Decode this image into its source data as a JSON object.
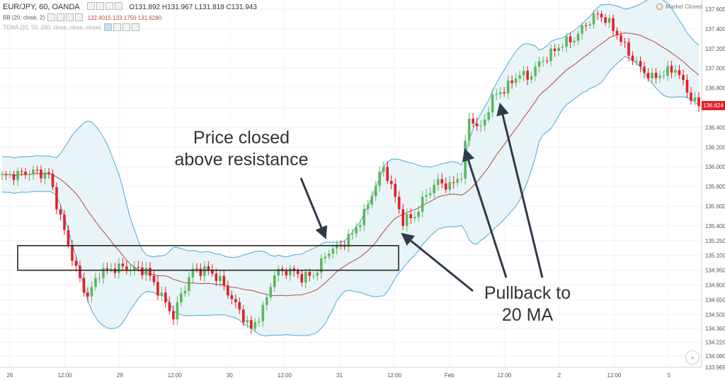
{
  "header": {
    "symbol": "EUR/JPY, 60, OANDA",
    "ohlc_label": "O131.892 H131.967 L131.818 C131.943",
    "bb_label": "BB (20, close, 2)",
    "bb_values": "132.4015  133.1750  131.6280",
    "tema_label": "TEMA (20, 50, 200, close, close, close)"
  },
  "market_status": "Market Closed",
  "current_price": "136.624",
  "annotations": {
    "resistance_line1": "Price closed",
    "resistance_line2": "above resistance",
    "pullback_line1": "Pullback to",
    "pullback_line2": "20 MA"
  },
  "colors": {
    "up": "#5cb85c",
    "down": "#e31f26",
    "band": "#4aa8d8",
    "band_fill": "#e8f4f8",
    "ma": "#b04a3c",
    "arrow": "#2f3b4a"
  },
  "chart_data": {
    "type": "candlestick",
    "symbol": "EUR/JPY",
    "timeframe": "60",
    "x_tick_labels": [
      "26",
      "12:00",
      "29",
      "12:00",
      "30",
      "12:00",
      "31",
      "12:00",
      "Feb",
      "12:00",
      "2",
      "12:00",
      "5"
    ],
    "y_tick_labels": [
      "137.600",
      "137.400",
      "137.200",
      "137.000",
      "136.800",
      "136.600",
      "136.400",
      "136.200",
      "136.000",
      "135.800",
      "135.600",
      "135.400",
      "135.250",
      "135.100",
      "134.950",
      "134.800",
      "134.650",
      "134.500",
      "134.360",
      "134.220",
      "134.080",
      "133.965"
    ],
    "ylim": [
      133.965,
      137.6
    ],
    "close_path": [
      {
        "x": 0,
        "y": 135.9
      },
      {
        "x": 8,
        "y": 135.95
      },
      {
        "x": 12,
        "y": 135.92
      },
      {
        "x": 15,
        "y": 135.48
      },
      {
        "x": 18,
        "y": 135.08
      },
      {
        "x": 20,
        "y": 134.85
      },
      {
        "x": 22,
        "y": 134.68
      },
      {
        "x": 25,
        "y": 134.93
      },
      {
        "x": 30,
        "y": 134.98
      },
      {
        "x": 34,
        "y": 134.96
      },
      {
        "x": 37,
        "y": 134.95
      },
      {
        "x": 40,
        "y": 134.75
      },
      {
        "x": 44,
        "y": 134.48
      },
      {
        "x": 46,
        "y": 134.7
      },
      {
        "x": 49,
        "y": 134.95
      },
      {
        "x": 53,
        "y": 134.95
      },
      {
        "x": 56,
        "y": 134.85
      },
      {
        "x": 60,
        "y": 134.6
      },
      {
        "x": 64,
        "y": 134.35
      },
      {
        "x": 67,
        "y": 134.55
      },
      {
        "x": 70,
        "y": 134.92
      },
      {
        "x": 74,
        "y": 134.95
      },
      {
        "x": 77,
        "y": 134.88
      },
      {
        "x": 80,
        "y": 134.9
      },
      {
        "x": 84,
        "y": 135.15
      },
      {
        "x": 87,
        "y": 135.2
      },
      {
        "x": 90,
        "y": 135.32
      },
      {
        "x": 93,
        "y": 135.52
      },
      {
        "x": 96,
        "y": 135.82
      },
      {
        "x": 98,
        "y": 136.0
      },
      {
        "x": 100,
        "y": 135.8
      },
      {
        "x": 103,
        "y": 135.45
      },
      {
        "x": 106,
        "y": 135.5
      },
      {
        "x": 109,
        "y": 135.72
      },
      {
        "x": 112,
        "y": 135.85
      },
      {
        "x": 115,
        "y": 135.8
      },
      {
        "x": 118,
        "y": 135.92
      },
      {
        "x": 120,
        "y": 136.5
      },
      {
        "x": 123,
        "y": 136.38
      },
      {
        "x": 126,
        "y": 136.7
      },
      {
        "x": 130,
        "y": 136.82
      },
      {
        "x": 133,
        "y": 136.95
      },
      {
        "x": 135,
        "y": 136.9
      },
      {
        "x": 138,
        "y": 137.05
      },
      {
        "x": 141,
        "y": 137.15
      },
      {
        "x": 144,
        "y": 137.25
      },
      {
        "x": 147,
        "y": 137.3
      },
      {
        "x": 150,
        "y": 137.45
      },
      {
        "x": 153,
        "y": 137.55
      },
      {
        "x": 155,
        "y": 137.5
      },
      {
        "x": 158,
        "y": 137.35
      },
      {
        "x": 161,
        "y": 137.15
      },
      {
        "x": 164,
        "y": 137.0
      },
      {
        "x": 167,
        "y": 136.9
      },
      {
        "x": 170,
        "y": 136.95
      },
      {
        "x": 173,
        "y": 137.0
      },
      {
        "x": 175,
        "y": 136.85
      },
      {
        "x": 177,
        "y": 136.7
      },
      {
        "x": 179,
        "y": 136.62
      }
    ],
    "series": [
      {
        "name": "BB (20, close, 2)",
        "values": [
          "132.4015",
          "133.1750",
          "131.6280"
        ]
      }
    ],
    "resistance_zone": {
      "y_low": 134.95,
      "y_high": 135.2
    },
    "annotations": [
      "Price closed above resistance",
      "Pullback to 20 MA"
    ]
  }
}
